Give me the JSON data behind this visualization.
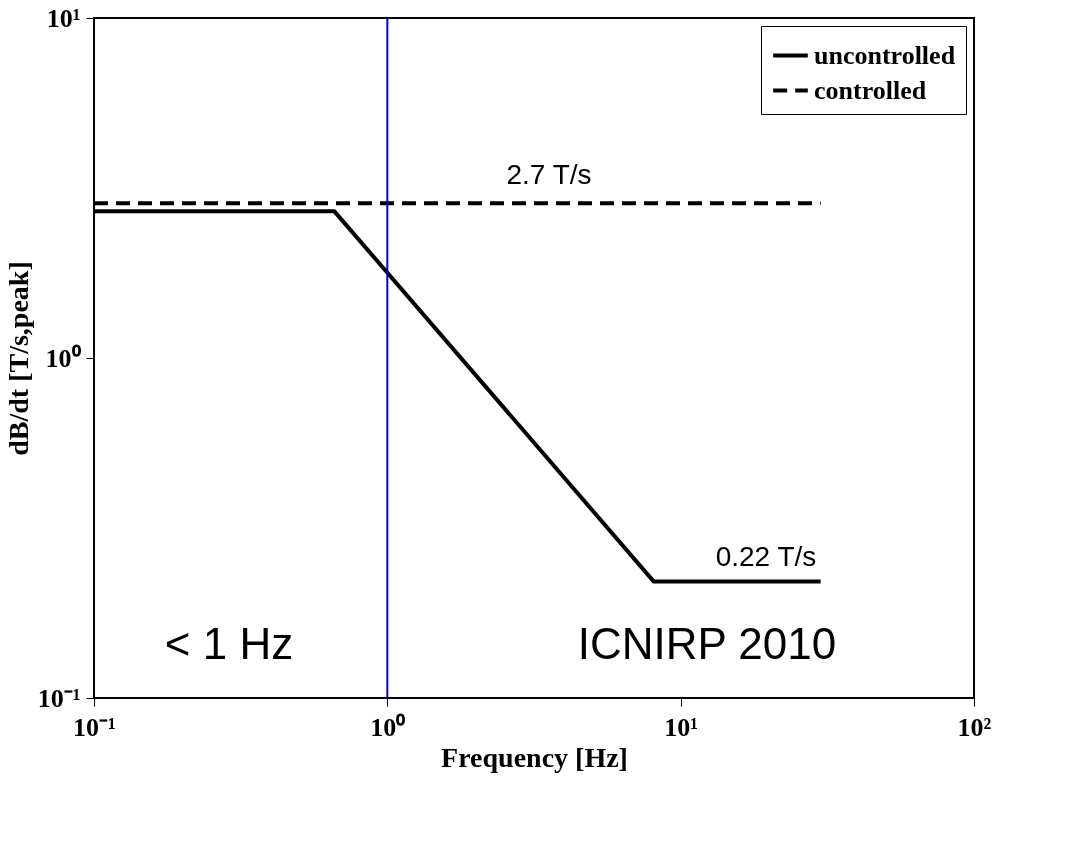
{
  "chart_data": {
    "type": "line",
    "xlabel": "Frequency [Hz]",
    "ylabel": "dB/dt [T/s,peak]",
    "log": "xy",
    "grid": false,
    "legend": "top right",
    "marker": "none",
    "xlim": [
      0.1,
      100
    ],
    "ylim": [
      0.1,
      10
    ],
    "xticks": [
      {
        "value": 0.1,
        "label": "10⁻¹"
      },
      {
        "value": 1,
        "label": "10⁰"
      },
      {
        "value": 10,
        "label": "10¹"
      },
      {
        "value": 100,
        "label": "10²"
      }
    ],
    "yticks": [
      {
        "value": 0.1,
        "label": "10⁻¹"
      },
      {
        "value": 1,
        "label": "10⁰"
      },
      {
        "value": 10,
        "label": "10¹"
      }
    ],
    "series": [
      {
        "name": "uncontrolled",
        "color": "#000000",
        "line_style": "solid",
        "x": [
          0.1,
          0.66,
          8.1,
          30
        ],
        "values": [
          2.7,
          2.7,
          0.22,
          0.22
        ]
      },
      {
        "name": "controlled",
        "color": "#000000",
        "line_style": "dashed",
        "x": [
          0.1,
          30
        ],
        "values": [
          2.85,
          2.85
        ]
      }
    ],
    "ref_lines": [
      {
        "axis": "x",
        "value": 1,
        "color": "#0000cc"
      }
    ],
    "annotations": [
      "2.7 T/s",
      "0.22 T/s",
      "< 1 Hz",
      "ICNIRP 2010"
    ]
  }
}
